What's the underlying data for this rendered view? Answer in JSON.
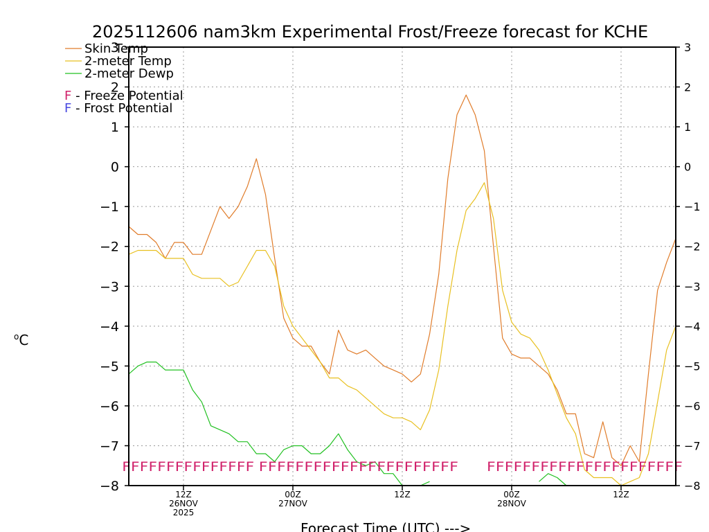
{
  "chart_data": {
    "type": "line",
    "title": "2025112606 nam3km Experimental Frost/Freeze forecast for KCHE",
    "xlabel": "Forecast Time (UTC) --->",
    "ylabel": "°C",
    "ylabel_unit": "C",
    "ylabel_super": "o",
    "ylim": [
      -8,
      3
    ],
    "yticks": [
      3,
      2,
      1,
      0,
      -1,
      -2,
      -3,
      -4,
      -5,
      -6,
      -7,
      -8
    ],
    "x_range_hours": [
      0,
      60
    ],
    "grid": true,
    "x_ticks": [
      {
        "hour": 6,
        "label": "12Z",
        "label2": "26NOV",
        "label3": "2025"
      },
      {
        "hour": 18,
        "label": "00Z",
        "label2": "27NOV",
        "label3": ""
      },
      {
        "hour": 30,
        "label": "12Z",
        "label2": "",
        "label3": ""
      },
      {
        "hour": 42,
        "label": "00Z",
        "label2": "28NOV",
        "label3": ""
      },
      {
        "hour": 54,
        "label": "12Z",
        "label2": "",
        "label3": ""
      }
    ],
    "legend": [
      {
        "name": "Skin Temp",
        "color": "#e07c2a"
      },
      {
        "name": "2-meter Temp",
        "color": "#e8c020"
      },
      {
        "name": "2-meter Dewp",
        "color": "#20c020"
      }
    ],
    "legend2": [
      {
        "letter": "F",
        "text": " - Freeze Potential",
        "color": "#d0206a"
      },
      {
        "letter": "F",
        "text": " - Frost Potential",
        "color": "#4848e0"
      }
    ],
    "series": [
      {
        "name": "Skin Temp",
        "color": "#e07c2a",
        "x": [
          0,
          1,
          2,
          3,
          4,
          5,
          6,
          7,
          8,
          9,
          10,
          11,
          12,
          13,
          14,
          15,
          16,
          17,
          18,
          19,
          20,
          21,
          22,
          23,
          24,
          25,
          26,
          27,
          28,
          29,
          30,
          31,
          32,
          33,
          34,
          35,
          36,
          37,
          38,
          39,
          40,
          41,
          42,
          43,
          44,
          45,
          46,
          47,
          48,
          49,
          50,
          51,
          52,
          53,
          54,
          55,
          56,
          57,
          58,
          59,
          60
        ],
        "values": [
          -1.5,
          -1.7,
          -1.7,
          -1.9,
          -2.3,
          -1.9,
          -1.9,
          -2.2,
          -2.2,
          -1.6,
          -1.0,
          -1.3,
          -1.0,
          -0.5,
          0.2,
          -0.7,
          -2.3,
          -3.8,
          -4.3,
          -4.5,
          -4.5,
          -4.9,
          -5.2,
          -4.1,
          -4.6,
          -4.7,
          -4.6,
          -4.8,
          -5.0,
          -5.1,
          -5.2,
          -5.4,
          -5.2,
          -4.2,
          -2.7,
          -0.3,
          1.3,
          1.8,
          1.3,
          0.4,
          -2.0,
          -4.3,
          -4.7,
          -4.8,
          -4.8,
          -5.0,
          -5.2,
          -5.6,
          -6.2,
          -6.2,
          -7.2,
          -7.3,
          -6.4,
          -7.3,
          -7.5,
          -7.0,
          -7.4,
          -5.2,
          -3.1,
          -2.4,
          -1.8
        ]
      },
      {
        "name": "2-meter Temp",
        "color": "#e8c020",
        "x": [
          0,
          1,
          2,
          3,
          4,
          5,
          6,
          7,
          8,
          9,
          10,
          11,
          12,
          13,
          14,
          15,
          16,
          17,
          18,
          19,
          20,
          21,
          22,
          23,
          24,
          25,
          26,
          27,
          28,
          29,
          30,
          31,
          32,
          33,
          34,
          35,
          36,
          37,
          38,
          39,
          40,
          41,
          42,
          43,
          44,
          45,
          46,
          47,
          48,
          49,
          50,
          51,
          52,
          53,
          54,
          55,
          56,
          57,
          58,
          59,
          60
        ],
        "values": [
          -2.2,
          -2.1,
          -2.1,
          -2.1,
          -2.3,
          -2.3,
          -2.3,
          -2.7,
          -2.8,
          -2.8,
          -2.8,
          -3.0,
          -2.9,
          -2.5,
          -2.1,
          -2.1,
          -2.5,
          -3.5,
          -4.0,
          -4.3,
          -4.6,
          -4.9,
          -5.3,
          -5.3,
          -5.5,
          -5.6,
          -5.8,
          -6.0,
          -6.2,
          -6.3,
          -6.3,
          -6.4,
          -6.6,
          -6.1,
          -5.1,
          -3.5,
          -2.1,
          -1.1,
          -0.8,
          -0.4,
          -1.3,
          -3.1,
          -3.9,
          -4.2,
          -4.3,
          -4.6,
          -5.1,
          -5.7,
          -6.3,
          -6.7,
          -7.6,
          -7.8,
          -7.8,
          -7.8,
          -8.0,
          -7.9,
          -7.8,
          -7.2,
          -5.9,
          -4.6,
          -4.0
        ]
      },
      {
        "name": "2-meter Dewp",
        "color": "#20c020",
        "x": [
          0,
          1,
          2,
          3,
          4,
          5,
          6,
          7,
          8,
          9,
          10,
          11,
          12,
          13,
          14,
          15,
          16,
          17,
          18,
          19,
          20,
          21,
          22,
          23,
          24,
          25,
          26,
          27,
          28,
          29,
          30,
          31,
          32,
          33
        ],
        "values": [
          -5.2,
          -5.0,
          -4.9,
          -4.9,
          -5.1,
          -5.1,
          -5.1,
          -5.6,
          -5.9,
          -6.5,
          -6.6,
          -6.7,
          -6.9,
          -6.9,
          -7.2,
          -7.2,
          -7.4,
          -7.1,
          -7.0,
          -7.0,
          -7.2,
          -7.2,
          -7.0,
          -6.7,
          -7.1,
          -7.4,
          -7.5,
          -7.4,
          -7.7,
          -7.7,
          -8.0,
          -8.0,
          -8.0,
          -7.9
        ]
      },
      {
        "name": "2-meter Dewp (late)",
        "color": "#20c020",
        "x": [
          45,
          46,
          47,
          48
        ],
        "values": [
          -7.9,
          -7.7,
          -7.8,
          -8.0
        ]
      }
    ],
    "freeze_marks": [
      {
        "start_hour": -0.3,
        "end_hour": 13.3,
        "letter": "F"
      },
      {
        "start_hour": 14.7,
        "end_hour": 35.7,
        "letter": "F"
      },
      {
        "start_hour": 39.7,
        "end_hour": 60.3,
        "letter": "F"
      }
    ],
    "freeze_level": -7.5,
    "freeze_color": "#d0206a"
  }
}
